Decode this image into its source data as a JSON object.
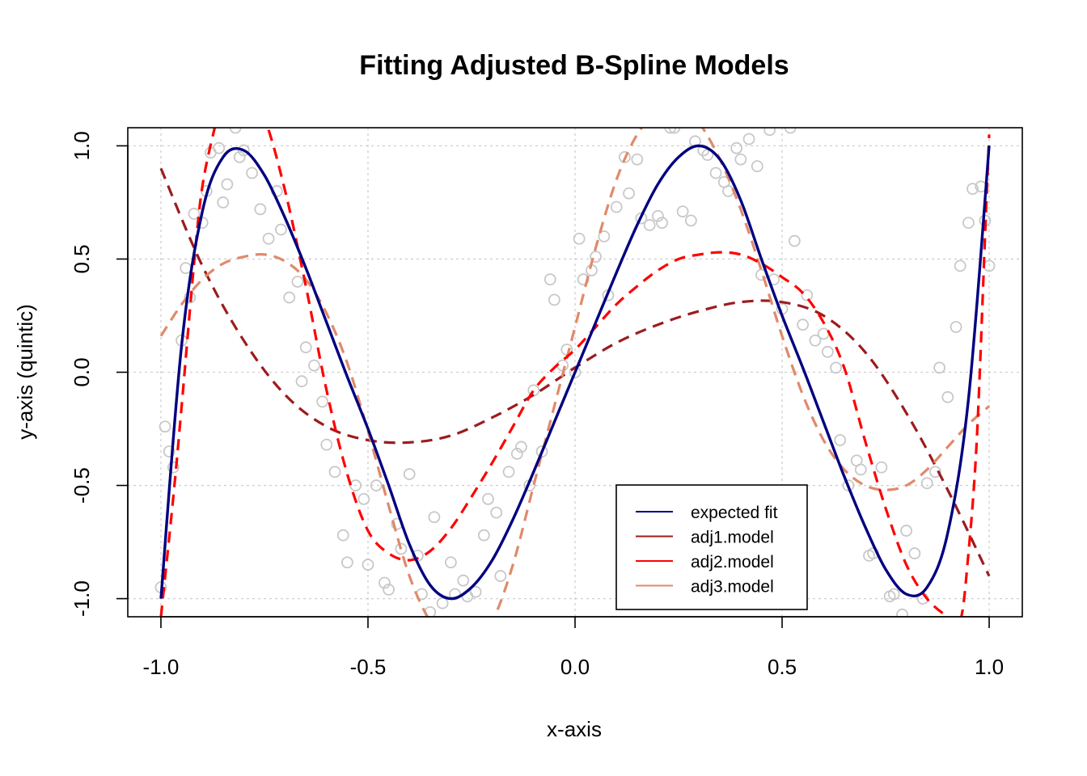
{
  "chart_data": {
    "type": "line",
    "title": "Fitting Adjusted B-Spline Models",
    "xlabel": "x-axis",
    "ylabel": "y-axis (quintic)",
    "xlim": [
      -1.08,
      1.08
    ],
    "ylim": [
      -1.08,
      1.08
    ],
    "xticks": [
      "-1.0",
      "-0.5",
      "0.0",
      "0.5",
      "1.0"
    ],
    "yticks": [
      "-1.0",
      "-0.5",
      "0.0",
      "0.5",
      "1.0"
    ],
    "grid": true,
    "legend_position": "bottom-right",
    "series": [
      {
        "name": "expected fit",
        "color": "#000080",
        "style": "solid",
        "x": [
          -1.0,
          -0.95,
          -0.9,
          -0.85,
          -0.8,
          -0.75,
          -0.7,
          -0.65,
          -0.6,
          -0.55,
          -0.5,
          -0.45,
          -0.4,
          -0.35,
          -0.3,
          -0.25,
          -0.2,
          -0.15,
          -0.1,
          -0.05,
          0.0,
          0.05,
          0.1,
          0.15,
          0.2,
          0.25,
          0.3,
          0.35,
          0.4,
          0.45,
          0.5,
          0.55,
          0.6,
          0.65,
          0.7,
          0.75,
          0.8,
          0.85,
          0.9,
          0.95,
          1.0
        ],
        "y": [
          -1.0,
          0.12,
          0.71,
          0.95,
          0.98,
          0.87,
          0.68,
          0.46,
          0.22,
          -0.02,
          -0.25,
          -0.5,
          -0.76,
          -0.94,
          -1.0,
          -0.95,
          -0.83,
          -0.65,
          -0.44,
          -0.22,
          0.0,
          0.22,
          0.44,
          0.65,
          0.83,
          0.95,
          1.0,
          0.94,
          0.76,
          0.5,
          0.25,
          0.02,
          -0.22,
          -0.46,
          -0.68,
          -0.87,
          -0.98,
          -0.95,
          -0.71,
          -0.12,
          1.0
        ]
      },
      {
        "name": "adj1.model",
        "color": "#9b1c1f",
        "style": "dashed",
        "x": [
          -1.0,
          -0.9,
          -0.8,
          -0.7,
          -0.6,
          -0.5,
          -0.4,
          -0.3,
          -0.2,
          -0.1,
          0.0,
          0.1,
          0.2,
          0.3,
          0.4,
          0.5,
          0.6,
          0.7,
          0.8,
          0.9,
          1.0
        ],
        "y": [
          0.9,
          0.47,
          0.14,
          -0.1,
          -0.24,
          -0.3,
          -0.31,
          -0.28,
          -0.2,
          -0.1,
          0.02,
          0.13,
          0.21,
          0.27,
          0.31,
          0.31,
          0.25,
          0.09,
          -0.18,
          -0.52,
          -0.9
        ]
      },
      {
        "name": "adj2.model",
        "color": "#ff0000",
        "style": "dashed",
        "x": [
          -1.0,
          -0.97,
          -0.95,
          -0.92,
          -0.9,
          -0.87,
          -0.85,
          -0.8,
          -0.75,
          -0.7,
          -0.65,
          -0.6,
          -0.55,
          -0.5,
          -0.45,
          -0.4,
          -0.35,
          -0.3,
          -0.25,
          -0.2,
          -0.15,
          -0.1,
          -0.05,
          0.0,
          0.05,
          0.1,
          0.15,
          0.2,
          0.25,
          0.3,
          0.35,
          0.4,
          0.45,
          0.5,
          0.55,
          0.6,
          0.65,
          0.7,
          0.75,
          0.8,
          0.85,
          0.9,
          0.93,
          0.95,
          0.97,
          0.99,
          1.0
        ],
        "y": [
          -1.08,
          -0.55,
          -0.15,
          0.48,
          0.82,
          1.08,
          1.2,
          1.25,
          1.12,
          0.8,
          0.38,
          -0.08,
          -0.45,
          -0.7,
          -0.8,
          -0.83,
          -0.79,
          -0.69,
          -0.55,
          -0.4,
          -0.24,
          -0.08,
          0.02,
          0.1,
          0.2,
          0.3,
          0.38,
          0.45,
          0.5,
          0.52,
          0.53,
          0.52,
          0.48,
          0.42,
          0.35,
          0.22,
          0.02,
          -0.3,
          -0.6,
          -0.85,
          -1.0,
          -1.08,
          -1.1,
          -0.8,
          -0.3,
          0.6,
          1.05
        ]
      },
      {
        "name": "adj3.model",
        "color": "#e08a6a",
        "style": "dashed",
        "x": [
          -1.0,
          -0.95,
          -0.9,
          -0.85,
          -0.8,
          -0.75,
          -0.7,
          -0.65,
          -0.6,
          -0.55,
          -0.5,
          -0.45,
          -0.4,
          -0.35,
          -0.3,
          -0.25,
          -0.2,
          -0.15,
          -0.1,
          -0.05,
          0.0,
          0.05,
          0.1,
          0.15,
          0.2,
          0.25,
          0.3,
          0.35,
          0.4,
          0.45,
          0.5,
          0.55,
          0.6,
          0.65,
          0.7,
          0.75,
          0.8,
          0.85,
          0.9,
          0.95,
          1.0
        ],
        "y": [
          0.16,
          0.3,
          0.41,
          0.48,
          0.51,
          0.52,
          0.49,
          0.41,
          0.26,
          0.04,
          -0.26,
          -0.59,
          -0.9,
          -1.1,
          -1.2,
          -1.2,
          -1.1,
          -0.85,
          -0.5,
          -0.15,
          0.2,
          0.55,
          0.85,
          1.05,
          1.15,
          1.18,
          1.1,
          0.94,
          0.72,
          0.45,
          0.16,
          -0.1,
          -0.3,
          -0.43,
          -0.5,
          -0.52,
          -0.5,
          -0.43,
          -0.33,
          -0.23,
          -0.15
        ]
      }
    ],
    "points": {
      "name": "data",
      "color": "#c8c8c8",
      "x": [
        -1.0,
        -0.99,
        -0.98,
        -0.97,
        -0.95,
        -0.94,
        -0.93,
        -0.92,
        -0.9,
        -0.89,
        -0.88,
        -0.86,
        -0.85,
        -0.84,
        -0.82,
        -0.81,
        -0.8,
        -0.78,
        -0.76,
        -0.74,
        -0.72,
        -0.71,
        -0.69,
        -0.67,
        -0.66,
        -0.65,
        -0.63,
        -0.61,
        -0.6,
        -0.58,
        -0.56,
        -0.55,
        -0.53,
        -0.51,
        -0.5,
        -0.48,
        -0.46,
        -0.45,
        -0.43,
        -0.42,
        -0.4,
        -0.38,
        -0.37,
        -0.35,
        -0.34,
        -0.32,
        -0.3,
        -0.29,
        -0.27,
        -0.26,
        -0.24,
        -0.22,
        -0.21,
        -0.19,
        -0.18,
        -0.16,
        -0.14,
        -0.13,
        -0.11,
        -0.1,
        -0.08,
        -0.06,
        -0.05,
        -0.03,
        -0.02,
        0.0,
        0.01,
        0.02,
        0.04,
        0.05,
        0.07,
        0.08,
        0.1,
        0.12,
        0.13,
        0.15,
        0.16,
        0.18,
        0.2,
        0.21,
        0.23,
        0.24,
        0.26,
        0.28,
        0.29,
        0.31,
        0.32,
        0.34,
        0.36,
        0.37,
        0.39,
        0.4,
        0.42,
        0.44,
        0.45,
        0.47,
        0.48,
        0.5,
        0.52,
        0.53,
        0.55,
        0.56,
        0.58,
        0.6,
        0.61,
        0.63,
        0.64,
        0.66,
        0.68,
        0.69,
        0.71,
        0.72,
        0.74,
        0.76,
        0.77,
        0.79,
        0.8,
        0.82,
        0.84,
        0.85,
        0.87,
        0.88,
        0.9,
        0.92,
        0.93,
        0.95,
        0.96,
        0.98,
        0.99,
        1.0
      ],
      "y": [
        -0.95,
        -0.24,
        -0.35,
        -0.42,
        0.14,
        0.46,
        0.33,
        0.7,
        0.66,
        0.8,
        0.97,
        0.99,
        0.75,
        0.83,
        1.08,
        0.95,
        0.98,
        0.88,
        0.72,
        0.59,
        0.8,
        0.63,
        0.33,
        0.4,
        -0.04,
        0.11,
        0.03,
        -0.13,
        -0.32,
        -0.44,
        -0.72,
        -0.84,
        -0.5,
        -0.56,
        -0.85,
        -0.5,
        -0.93,
        -0.96,
        -0.67,
        -0.78,
        -0.45,
        -0.81,
        -0.98,
        -1.06,
        -0.64,
        -1.02,
        -0.84,
        -0.98,
        -0.92,
        -0.99,
        -0.97,
        -0.72,
        -0.56,
        -0.62,
        -0.9,
        -0.44,
        -0.36,
        -0.33,
        -0.5,
        -0.08,
        -0.35,
        0.41,
        0.32,
        0.03,
        0.1,
        0.0,
        0.59,
        0.41,
        0.45,
        0.51,
        0.6,
        0.34,
        0.73,
        0.95,
        0.79,
        0.94,
        0.68,
        0.65,
        0.69,
        0.66,
        1.08,
        1.08,
        0.71,
        0.67,
        1.02,
        0.98,
        0.96,
        0.88,
        0.84,
        0.8,
        0.99,
        0.94,
        1.03,
        0.91,
        0.43,
        1.07,
        0.41,
        0.28,
        1.08,
        0.58,
        0.21,
        0.34,
        0.14,
        0.17,
        0.09,
        0.02,
        -0.3,
        -0.5,
        -0.39,
        -0.43,
        -0.81,
        -0.8,
        -0.42,
        -0.99,
        -0.98,
        -1.07,
        -0.7,
        -0.8,
        -1.0,
        -0.49,
        -0.44,
        0.02,
        -0.11,
        0.2,
        0.47,
        0.66,
        0.81,
        0.82,
        0.67,
        0.47
      ]
    }
  }
}
